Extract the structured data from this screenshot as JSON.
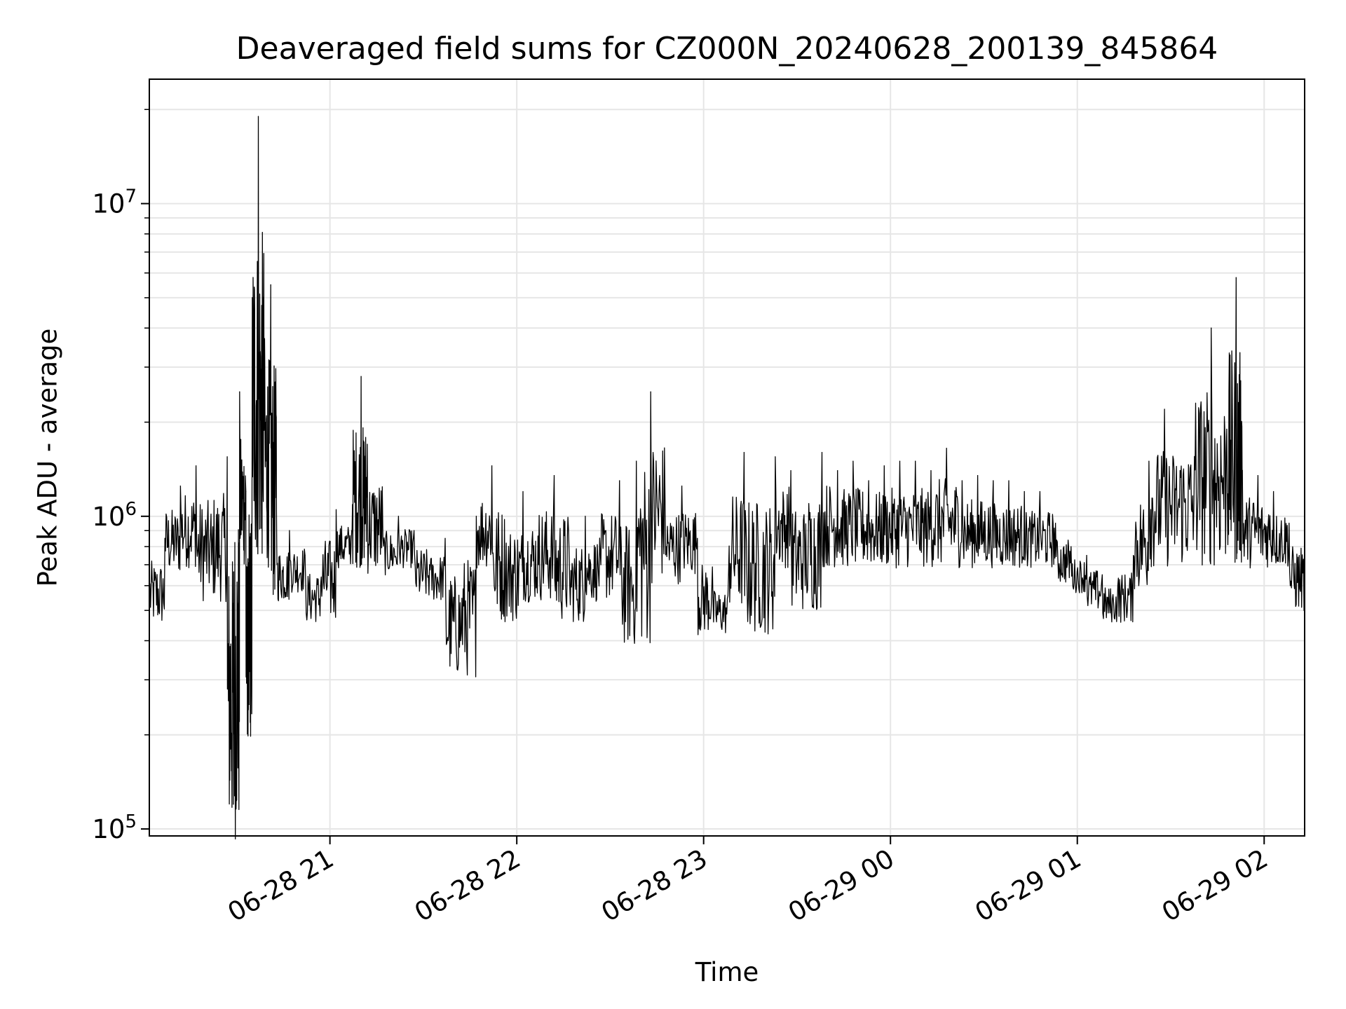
{
  "chart_data": {
    "type": "line",
    "title": "Deaveraged field sums for CZ000N_20240628_200139_845864",
    "xlabel": "Time",
    "ylabel": "Peak ADU - average",
    "yscale": "log",
    "grid": true,
    "ylim": [
      95000,
      25000000
    ],
    "xlim": [
      "2024-06-28 20:02",
      "2024-06-29 02:13"
    ],
    "y_ticks": [
      {
        "base": "10",
        "exp": "5",
        "value": 100000
      },
      {
        "base": "10",
        "exp": "6",
        "value": 1000000
      },
      {
        "base": "10",
        "exp": "7",
        "value": 10000000
      }
    ],
    "x_ticks": [
      {
        "label": "06-28 21",
        "time": "2024-06-28 21:00"
      },
      {
        "label": "06-28 22",
        "time": "2024-06-28 22:00"
      },
      {
        "label": "06-28 23",
        "time": "2024-06-28 23:00"
      },
      {
        "label": "06-29 00",
        "time": "2024-06-29 00:00"
      },
      {
        "label": "06-29 01",
        "time": "2024-06-29 01:00"
      },
      {
        "label": "06-29 02",
        "time": "2024-06-29 02:00"
      }
    ],
    "series": [
      {
        "color": "#000000",
        "x": [
          "2024-06-28 20:02",
          "2024-06-28 20:07",
          "2024-06-28 20:12",
          "2024-06-28 20:17",
          "2024-06-28 20:22",
          "2024-06-28 20:27",
          "2024-06-28 20:29",
          "2024-06-28 20:31",
          "2024-06-28 20:33",
          "2024-06-28 20:34",
          "2024-06-28 20:35",
          "2024-06-28 20:37",
          "2024-06-28 20:39",
          "2024-06-28 20:41",
          "2024-06-28 20:43",
          "2024-06-28 20:47",
          "2024-06-28 20:52",
          "2024-06-28 20:57",
          "2024-06-28 21:02",
          "2024-06-28 21:07",
          "2024-06-28 21:10",
          "2024-06-28 21:12",
          "2024-06-28 21:17",
          "2024-06-28 21:22",
          "2024-06-28 21:27",
          "2024-06-28 21:32",
          "2024-06-28 21:37",
          "2024-06-28 21:42",
          "2024-06-28 21:47",
          "2024-06-28 21:52",
          "2024-06-28 21:57",
          "2024-06-28 22:02",
          "2024-06-28 22:07",
          "2024-06-28 22:12",
          "2024-06-28 22:17",
          "2024-06-28 22:22",
          "2024-06-28 22:27",
          "2024-06-28 22:33",
          "2024-06-28 22:38",
          "2024-06-28 22:43",
          "2024-06-28 22:48",
          "2024-06-28 22:53",
          "2024-06-28 22:58",
          "2024-06-28 23:03",
          "2024-06-28 23:08",
          "2024-06-28 23:13",
          "2024-06-28 23:18",
          "2024-06-28 23:23",
          "2024-06-28 23:28",
          "2024-06-28 23:33",
          "2024-06-28 23:38",
          "2024-06-28 23:43",
          "2024-06-28 23:48",
          "2024-06-28 23:53",
          "2024-06-28 23:58",
          "2024-06-29 00:03",
          "2024-06-29 00:08",
          "2024-06-29 00:13",
          "2024-06-29 00:18",
          "2024-06-29 00:23",
          "2024-06-29 00:28",
          "2024-06-29 00:33",
          "2024-06-29 00:38",
          "2024-06-29 00:43",
          "2024-06-29 00:48",
          "2024-06-29 00:53",
          "2024-06-29 00:58",
          "2024-06-29 01:03",
          "2024-06-29 01:08",
          "2024-06-29 01:13",
          "2024-06-29 01:18",
          "2024-06-29 01:23",
          "2024-06-29 01:28",
          "2024-06-29 01:33",
          "2024-06-29 01:38",
          "2024-06-29 01:43",
          "2024-06-29 01:48",
          "2024-06-29 01:51",
          "2024-06-29 01:53",
          "2024-06-29 01:58",
          "2024-06-29 02:03",
          "2024-06-29 02:08",
          "2024-06-29 02:13"
        ],
        "y": [
          580000,
          850000,
          1250000,
          1450000,
          700000,
          1550000,
          120000,
          2500000,
          1200000,
          250000,
          1800000,
          19000000,
          3700000,
          5500000,
          700000,
          900000,
          750000,
          600000,
          1050000,
          900000,
          2800000,
          1700000,
          850000,
          1000000,
          900000,
          700000,
          850000,
          400000,
          1000000,
          1450000,
          600000,
          1200000,
          700000,
          1350000,
          600000,
          1000000,
          700000,
          1300000,
          500000,
          2500000,
          800000,
          1250000,
          850000,
          550000,
          650000,
          1600000,
          550000,
          1550000,
          1400000,
          650000,
          1600000,
          1400000,
          1500000,
          1300000,
          1450000,
          1500000,
          1500000,
          1400000,
          1650000,
          1300000,
          1350000,
          1300000,
          1300000,
          1200000,
          1200000,
          950000,
          800000,
          750000,
          650000,
          600000,
          750000,
          1500000,
          2200000,
          1400000,
          2300000,
          4000000,
          1900000,
          5800000,
          1400000,
          1350000,
          1200000,
          950000,
          650000
        ]
      }
    ]
  }
}
